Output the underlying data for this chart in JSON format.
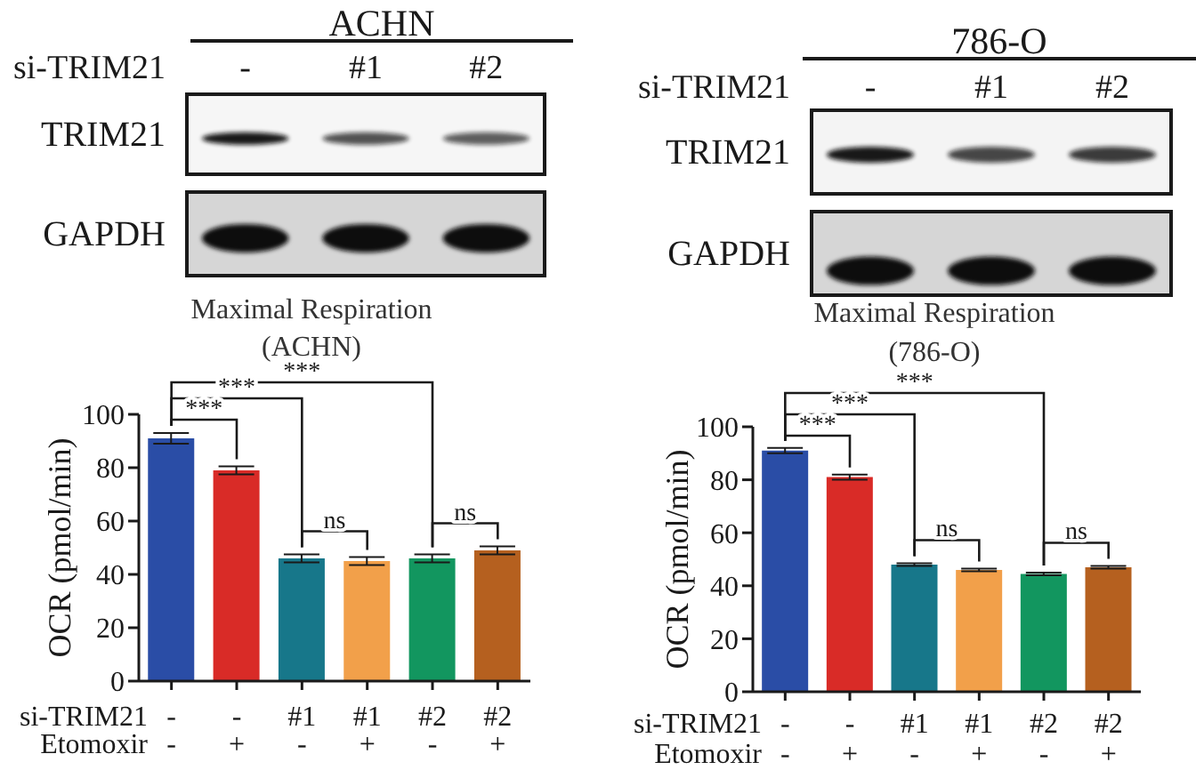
{
  "chart_data": [
    {
      "type": "other",
      "title": "ACHN",
      "xlabel": "si-TRIM21",
      "categories": [
        "-",
        "#1",
        "#2"
      ],
      "y_categories": [
        "TRIM21",
        "GAPDH"
      ]
    },
    {
      "type": "other",
      "title": "786-O",
      "xlabel": "si-TRIM21",
      "categories": [
        "-",
        "#1",
        "#2"
      ],
      "y_categories": [
        "TRIM21",
        "GAPDH"
      ]
    },
    {
      "type": "bar",
      "title": "Maximal Respiration\n(ACHN)",
      "ylabel": "OCR (pmol/min)",
      "xlabel": "si-TRIM21\nEtomoxir",
      "categories": [
        "-\n-",
        "-\n+",
        "#1\n-",
        "#1\n+",
        "#2\n-",
        "#2\n+"
      ],
      "values": [
        91,
        79,
        46,
        45,
        46,
        49
      ],
      "errors": [
        2,
        1.5,
        1.5,
        1.5,
        1.5,
        1.5
      ],
      "colors": [
        "#2a4da6",
        "#d92b27",
        "#17778a",
        "#f2a04a",
        "#12965f",
        "#b5601f"
      ],
      "ylim": [
        0,
        100
      ],
      "yticks": [
        0,
        20,
        40,
        60,
        80,
        100
      ],
      "annotations": [
        "***",
        "***",
        "***",
        "ns",
        "ns"
      ]
    },
    {
      "type": "bar",
      "title": "Maximal Respiration\n(786-O)",
      "ylabel": "OCR (pmol/min)",
      "xlabel": "si-TRIM21\nEtomoxir",
      "categories": [
        "-\n-",
        "-\n+",
        "#1\n-",
        "#1\n+",
        "#2\n-",
        "#2\n+"
      ],
      "values": [
        91,
        81,
        48,
        46,
        44.5,
        47
      ],
      "errors": [
        1,
        1,
        0.5,
        0.5,
        0.5,
        0.5
      ],
      "colors": [
        "#2a4da6",
        "#d92b27",
        "#17778a",
        "#f2a04a",
        "#12965f",
        "#b5601f"
      ],
      "ylim": [
        0,
        100
      ],
      "yticks": [
        0,
        20,
        40,
        60,
        80,
        100
      ],
      "annotations": [
        "***",
        "***",
        "***",
        "ns",
        "ns"
      ]
    }
  ]
}
